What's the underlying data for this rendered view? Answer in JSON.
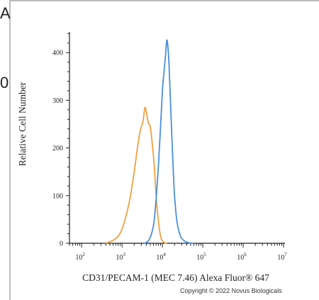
{
  "clipped_text": [
    "A",
    "0"
  ],
  "copyright": "Copyright © 2022 Novus Biologicals",
  "chart_data": {
    "type": "line",
    "title": "",
    "xlabel": "CD31/PECAM-1 (MEC 7.46) Alexa Fluor® 647",
    "ylabel": "Relative Cell Number",
    "xscale": "log",
    "xlim": [
      50,
      10000000
    ],
    "ylim": [
      0,
      450
    ],
    "x_ticks": [
      {
        "base": "10",
        "exp": "2",
        "value": 100
      },
      {
        "base": "10",
        "exp": "3",
        "value": 1000
      },
      {
        "base": "10",
        "exp": "4",
        "value": 10000
      },
      {
        "base": "10",
        "exp": "5",
        "value": 100000
      },
      {
        "base": "10",
        "exp": "6",
        "value": 1000000
      },
      {
        "base": "10",
        "exp": "7",
        "value": 10000000
      }
    ],
    "y_ticks": [
      0,
      100,
      200,
      300,
      400
    ],
    "grid": false,
    "legend": "none",
    "series": [
      {
        "color": "#f0a040",
        "x": [
          400,
          700,
          1000,
          1500,
          2000,
          2500,
          2900,
          3300,
          3700,
          4100,
          4500,
          5000,
          5600,
          6300,
          7100,
          8000,
          9000,
          10000,
          11500,
          13000
        ],
        "y": [
          0,
          10,
          30,
          85,
          150,
          210,
          240,
          255,
          285,
          270,
          252,
          245,
          210,
          160,
          90,
          45,
          15,
          5,
          1,
          0
        ]
      },
      {
        "color": "#4a8fd8",
        "x": [
          3500,
          4500,
          5600,
          6300,
          7100,
          8000,
          9000,
          10000,
          11000,
          12000,
          12800,
          13500,
          14500,
          16000,
          18000,
          20000,
          23000,
          28000,
          35000,
          45000,
          60000
        ],
        "y": [
          0,
          5,
          25,
          50,
          100,
          165,
          245,
          320,
          360,
          395,
          425,
          418,
          380,
          290,
          180,
          100,
          45,
          15,
          5,
          1,
          0
        ]
      }
    ]
  }
}
